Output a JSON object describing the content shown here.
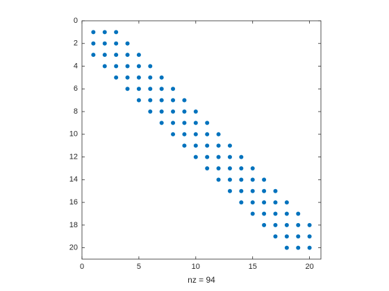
{
  "chart_data": {
    "type": "scatter",
    "xlabel": "nz = 94",
    "color": "#0072bd",
    "y_reversed": true,
    "xlim": [
      0,
      21
    ],
    "ylim": [
      0,
      21
    ],
    "xticks": [
      0,
      5,
      10,
      15,
      20
    ],
    "yticks": [
      0,
      2,
      4,
      6,
      8,
      10,
      12,
      14,
      16,
      18,
      20
    ],
    "x": [
      1,
      2,
      3,
      1,
      2,
      3,
      4,
      1,
      2,
      3,
      4,
      5,
      2,
      3,
      4,
      5,
      6,
      3,
      4,
      5,
      6,
      7,
      4,
      5,
      6,
      7,
      8,
      5,
      6,
      7,
      8,
      9,
      6,
      7,
      8,
      9,
      10,
      7,
      8,
      9,
      10,
      11,
      8,
      9,
      10,
      11,
      12,
      9,
      10,
      11,
      12,
      13,
      10,
      11,
      12,
      13,
      14,
      11,
      12,
      13,
      14,
      15,
      12,
      13,
      14,
      15,
      16,
      13,
      14,
      15,
      16,
      17,
      14,
      15,
      16,
      17,
      18,
      15,
      16,
      17,
      18,
      19,
      16,
      17,
      18,
      19,
      20,
      17,
      18,
      19,
      20,
      18,
      19,
      20
    ],
    "y": [
      1,
      1,
      1,
      2,
      2,
      2,
      2,
      3,
      3,
      3,
      3,
      3,
      4,
      4,
      4,
      4,
      4,
      5,
      5,
      5,
      5,
      5,
      6,
      6,
      6,
      6,
      6,
      7,
      7,
      7,
      7,
      7,
      8,
      8,
      8,
      8,
      8,
      9,
      9,
      9,
      9,
      9,
      10,
      10,
      10,
      10,
      10,
      11,
      11,
      11,
      11,
      11,
      12,
      12,
      12,
      12,
      12,
      13,
      13,
      13,
      13,
      13,
      14,
      14,
      14,
      14,
      14,
      15,
      15,
      15,
      15,
      15,
      16,
      16,
      16,
      16,
      16,
      17,
      17,
      17,
      17,
      17,
      18,
      18,
      18,
      18,
      18,
      19,
      19,
      19,
      19,
      20,
      20,
      20
    ]
  }
}
